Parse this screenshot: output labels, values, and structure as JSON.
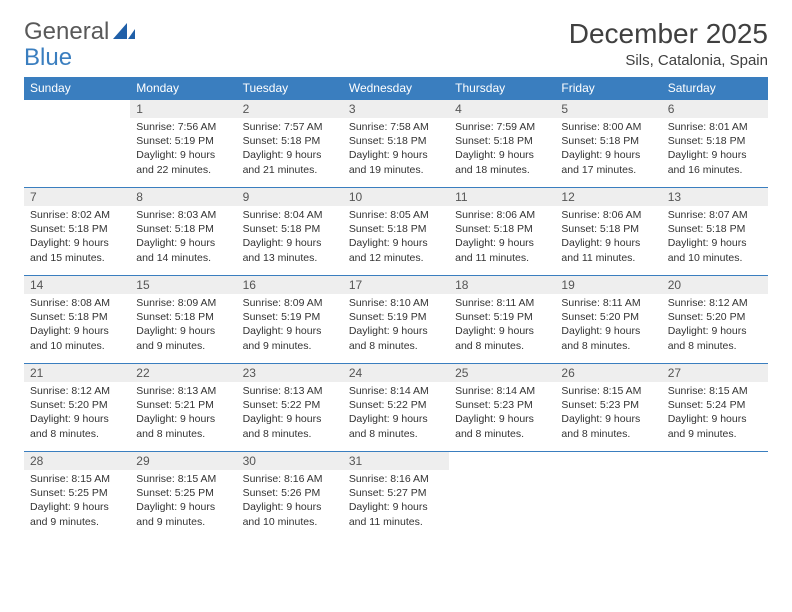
{
  "brand": {
    "part1": "General",
    "part2": "Blue"
  },
  "title": "December 2025",
  "location": "Sils, Catalonia, Spain",
  "colors": {
    "header_bg": "#3a7ebf",
    "header_text": "#ffffff",
    "daynum_bg": "#eeeeee",
    "border": "#3a7ebf",
    "body_text": "#333333",
    "title_text": "#404040"
  },
  "weekdays": [
    "Sunday",
    "Monday",
    "Tuesday",
    "Wednesday",
    "Thursday",
    "Friday",
    "Saturday"
  ],
  "weeks": [
    [
      null,
      {
        "n": "1",
        "sr": "Sunrise: 7:56 AM",
        "ss": "Sunset: 5:19 PM",
        "d1": "Daylight: 9 hours",
        "d2": "and 22 minutes."
      },
      {
        "n": "2",
        "sr": "Sunrise: 7:57 AM",
        "ss": "Sunset: 5:18 PM",
        "d1": "Daylight: 9 hours",
        "d2": "and 21 minutes."
      },
      {
        "n": "3",
        "sr": "Sunrise: 7:58 AM",
        "ss": "Sunset: 5:18 PM",
        "d1": "Daylight: 9 hours",
        "d2": "and 19 minutes."
      },
      {
        "n": "4",
        "sr": "Sunrise: 7:59 AM",
        "ss": "Sunset: 5:18 PM",
        "d1": "Daylight: 9 hours",
        "d2": "and 18 minutes."
      },
      {
        "n": "5",
        "sr": "Sunrise: 8:00 AM",
        "ss": "Sunset: 5:18 PM",
        "d1": "Daylight: 9 hours",
        "d2": "and 17 minutes."
      },
      {
        "n": "6",
        "sr": "Sunrise: 8:01 AM",
        "ss": "Sunset: 5:18 PM",
        "d1": "Daylight: 9 hours",
        "d2": "and 16 minutes."
      }
    ],
    [
      {
        "n": "7",
        "sr": "Sunrise: 8:02 AM",
        "ss": "Sunset: 5:18 PM",
        "d1": "Daylight: 9 hours",
        "d2": "and 15 minutes."
      },
      {
        "n": "8",
        "sr": "Sunrise: 8:03 AM",
        "ss": "Sunset: 5:18 PM",
        "d1": "Daylight: 9 hours",
        "d2": "and 14 minutes."
      },
      {
        "n": "9",
        "sr": "Sunrise: 8:04 AM",
        "ss": "Sunset: 5:18 PM",
        "d1": "Daylight: 9 hours",
        "d2": "and 13 minutes."
      },
      {
        "n": "10",
        "sr": "Sunrise: 8:05 AM",
        "ss": "Sunset: 5:18 PM",
        "d1": "Daylight: 9 hours",
        "d2": "and 12 minutes."
      },
      {
        "n": "11",
        "sr": "Sunrise: 8:06 AM",
        "ss": "Sunset: 5:18 PM",
        "d1": "Daylight: 9 hours",
        "d2": "and 11 minutes."
      },
      {
        "n": "12",
        "sr": "Sunrise: 8:06 AM",
        "ss": "Sunset: 5:18 PM",
        "d1": "Daylight: 9 hours",
        "d2": "and 11 minutes."
      },
      {
        "n": "13",
        "sr": "Sunrise: 8:07 AM",
        "ss": "Sunset: 5:18 PM",
        "d1": "Daylight: 9 hours",
        "d2": "and 10 minutes."
      }
    ],
    [
      {
        "n": "14",
        "sr": "Sunrise: 8:08 AM",
        "ss": "Sunset: 5:18 PM",
        "d1": "Daylight: 9 hours",
        "d2": "and 10 minutes."
      },
      {
        "n": "15",
        "sr": "Sunrise: 8:09 AM",
        "ss": "Sunset: 5:18 PM",
        "d1": "Daylight: 9 hours",
        "d2": "and 9 minutes."
      },
      {
        "n": "16",
        "sr": "Sunrise: 8:09 AM",
        "ss": "Sunset: 5:19 PM",
        "d1": "Daylight: 9 hours",
        "d2": "and 9 minutes."
      },
      {
        "n": "17",
        "sr": "Sunrise: 8:10 AM",
        "ss": "Sunset: 5:19 PM",
        "d1": "Daylight: 9 hours",
        "d2": "and 8 minutes."
      },
      {
        "n": "18",
        "sr": "Sunrise: 8:11 AM",
        "ss": "Sunset: 5:19 PM",
        "d1": "Daylight: 9 hours",
        "d2": "and 8 minutes."
      },
      {
        "n": "19",
        "sr": "Sunrise: 8:11 AM",
        "ss": "Sunset: 5:20 PM",
        "d1": "Daylight: 9 hours",
        "d2": "and 8 minutes."
      },
      {
        "n": "20",
        "sr": "Sunrise: 8:12 AM",
        "ss": "Sunset: 5:20 PM",
        "d1": "Daylight: 9 hours",
        "d2": "and 8 minutes."
      }
    ],
    [
      {
        "n": "21",
        "sr": "Sunrise: 8:12 AM",
        "ss": "Sunset: 5:20 PM",
        "d1": "Daylight: 9 hours",
        "d2": "and 8 minutes."
      },
      {
        "n": "22",
        "sr": "Sunrise: 8:13 AM",
        "ss": "Sunset: 5:21 PM",
        "d1": "Daylight: 9 hours",
        "d2": "and 8 minutes."
      },
      {
        "n": "23",
        "sr": "Sunrise: 8:13 AM",
        "ss": "Sunset: 5:22 PM",
        "d1": "Daylight: 9 hours",
        "d2": "and 8 minutes."
      },
      {
        "n": "24",
        "sr": "Sunrise: 8:14 AM",
        "ss": "Sunset: 5:22 PM",
        "d1": "Daylight: 9 hours",
        "d2": "and 8 minutes."
      },
      {
        "n": "25",
        "sr": "Sunrise: 8:14 AM",
        "ss": "Sunset: 5:23 PM",
        "d1": "Daylight: 9 hours",
        "d2": "and 8 minutes."
      },
      {
        "n": "26",
        "sr": "Sunrise: 8:15 AM",
        "ss": "Sunset: 5:23 PM",
        "d1": "Daylight: 9 hours",
        "d2": "and 8 minutes."
      },
      {
        "n": "27",
        "sr": "Sunrise: 8:15 AM",
        "ss": "Sunset: 5:24 PM",
        "d1": "Daylight: 9 hours",
        "d2": "and 9 minutes."
      }
    ],
    [
      {
        "n": "28",
        "sr": "Sunrise: 8:15 AM",
        "ss": "Sunset: 5:25 PM",
        "d1": "Daylight: 9 hours",
        "d2": "and 9 minutes."
      },
      {
        "n": "29",
        "sr": "Sunrise: 8:15 AM",
        "ss": "Sunset: 5:25 PM",
        "d1": "Daylight: 9 hours",
        "d2": "and 9 minutes."
      },
      {
        "n": "30",
        "sr": "Sunrise: 8:16 AM",
        "ss": "Sunset: 5:26 PM",
        "d1": "Daylight: 9 hours",
        "d2": "and 10 minutes."
      },
      {
        "n": "31",
        "sr": "Sunrise: 8:16 AM",
        "ss": "Sunset: 5:27 PM",
        "d1": "Daylight: 9 hours",
        "d2": "and 11 minutes."
      },
      null,
      null,
      null
    ]
  ]
}
